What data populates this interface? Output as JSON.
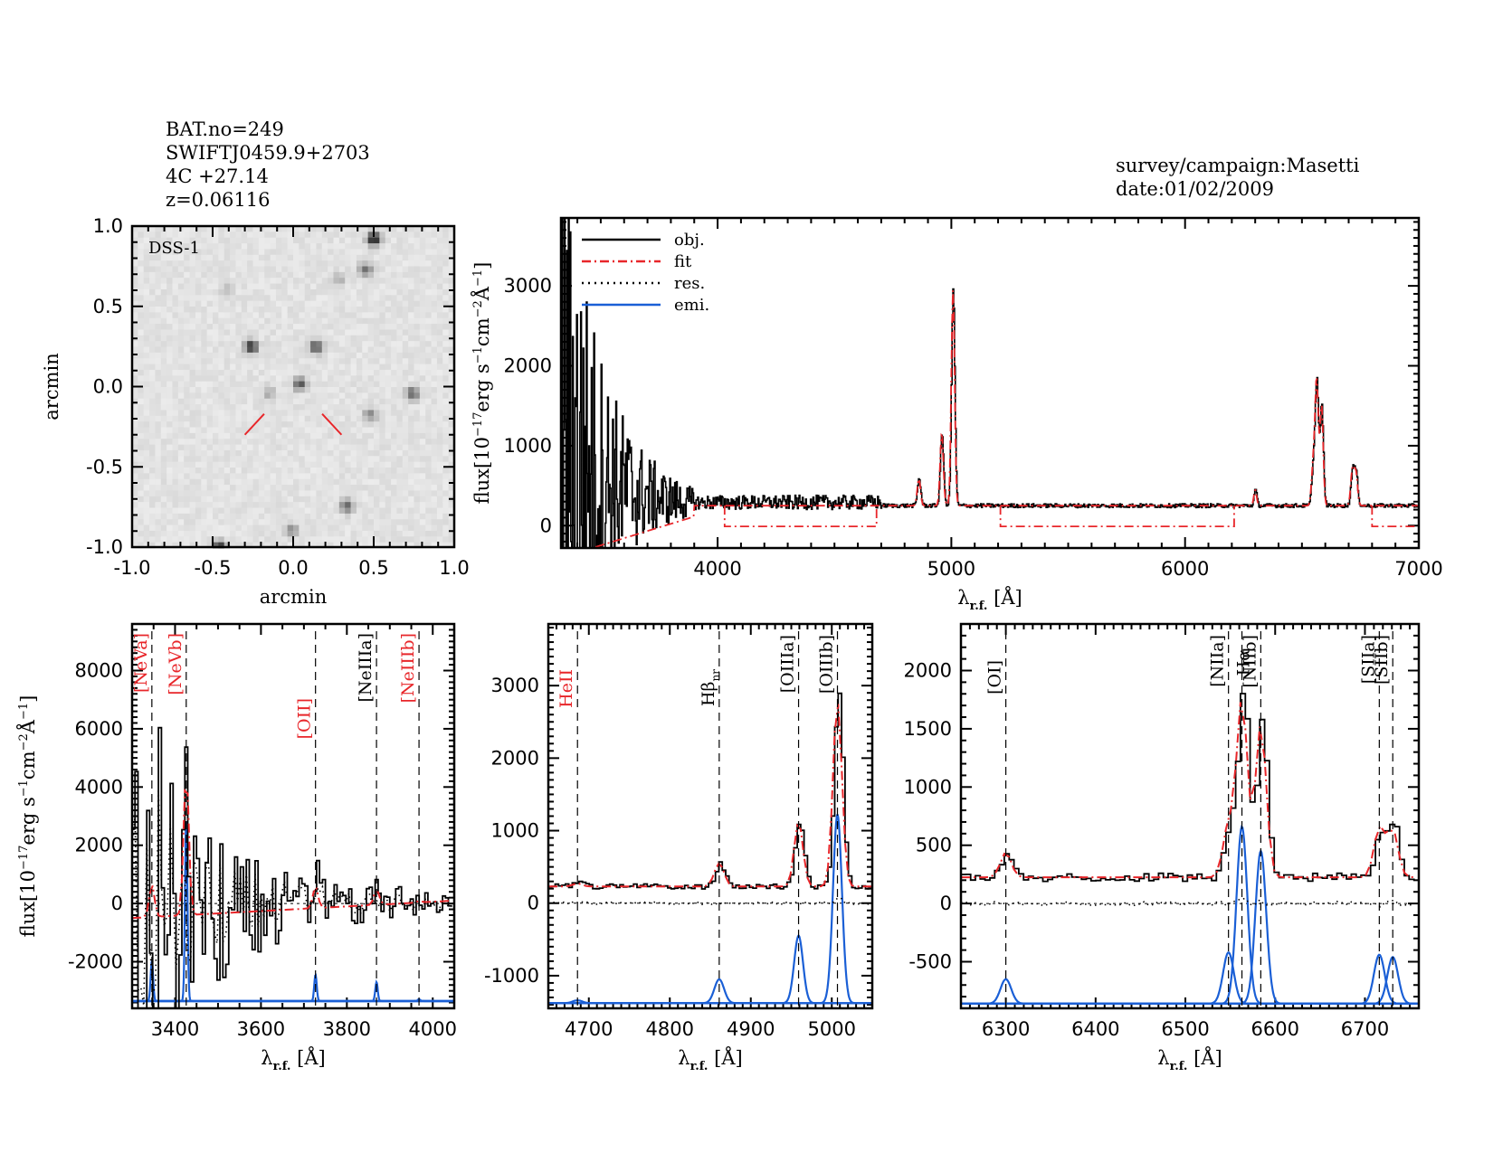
{
  "header": {
    "source_lines": [
      "BAT.no=249",
      "SWIFTJ0459.9+2703",
      "4C +27.14",
      "z=0.06116"
    ],
    "survey_line": "survey/campaign:Masetti",
    "date_line": "date:01/02/2009"
  },
  "colors": {
    "object": "#000000",
    "fit": "#e8262a",
    "residual": "#000000",
    "emission": "#1a5fd6",
    "marker": "#e8262a",
    "label_red": "#e8262a",
    "label_black": "#000000"
  },
  "chart_data": [
    {
      "id": "image",
      "type": "heatmap",
      "title": "DSS-1",
      "xlabel": "arcmin",
      "ylabel": "arcmin",
      "xlim": [
        -1.0,
        1.0
      ],
      "ylim": [
        -1.0,
        1.0
      ],
      "xticks": [
        "-1.0",
        "-0.5",
        "0.0",
        "0.5",
        "1.0"
      ],
      "yticks": [
        "-1.0",
        "-0.5",
        "0.0",
        "0.5",
        "1.0"
      ],
      "sources": [
        {
          "x": 0.5,
          "y": 0.92,
          "mag": 1.0
        },
        {
          "x": 0.45,
          "y": 0.73,
          "mag": 0.55
        },
        {
          "x": 0.29,
          "y": 0.67,
          "mag": 0.25
        },
        {
          "x": -0.41,
          "y": 0.6,
          "mag": 0.2
        },
        {
          "x": -0.26,
          "y": 0.25,
          "mag": 0.9
        },
        {
          "x": 0.14,
          "y": 0.25,
          "mag": 0.75
        },
        {
          "x": 0.04,
          "y": 0.02,
          "mag": 0.7
        },
        {
          "x": -0.15,
          "y": -0.04,
          "mag": 0.3
        },
        {
          "x": 0.74,
          "y": -0.04,
          "mag": 0.65
        },
        {
          "x": 0.48,
          "y": -0.17,
          "mag": 0.45
        },
        {
          "x": 0.33,
          "y": -0.74,
          "mag": 0.6
        },
        {
          "x": -0.01,
          "y": -0.89,
          "mag": 0.4
        },
        {
          "x": -0.46,
          "y": -1.0,
          "mag": 1.0
        }
      ],
      "target_marker": {
        "x": 0.0,
        "y": 0.0
      }
    },
    {
      "id": "full",
      "type": "line",
      "xlabel": "λ r.f. [Å]",
      "ylabel": "flux[10^-17 erg s^-1 cm^-2 Å^-1]",
      "xlim": [
        3330,
        7000
      ],
      "ylim": [
        -280,
        3850
      ],
      "xticks": [
        "4000",
        "5000",
        "6000",
        "7000"
      ],
      "yticks": [
        "0",
        "1000",
        "2000",
        "3000"
      ],
      "legend": {
        "placement": "top-left",
        "entries": [
          "obj.",
          "fit",
          "res.",
          "emi."
        ]
      },
      "continuum": 250,
      "noisy_blue_end": 3900,
      "emission_lines": [
        {
          "name": "Hβ",
          "x": 4861,
          "peak": 340,
          "sigma": 7
        },
        {
          "name": "[OIIIa]",
          "x": 4959,
          "peak": 900,
          "sigma": 7
        },
        {
          "name": "[OIIIb]",
          "x": 5007,
          "peak": 2700,
          "sigma": 7
        },
        {
          "name": "[OI]",
          "x": 6300,
          "peak": 200,
          "sigma": 6
        },
        {
          "name": "[NIIa]",
          "x": 6548,
          "peak": 500,
          "sigma": 7
        },
        {
          "name": "Hα",
          "x": 6563,
          "peak": 1550,
          "sigma": 7
        },
        {
          "name": "[NIIb]",
          "x": 6584,
          "peak": 1250,
          "sigma": 7
        },
        {
          "name": "[SIIa]",
          "x": 6716,
          "peak": 450,
          "sigma": 7
        },
        {
          "name": "[SIIb]",
          "x": 6731,
          "peak": 400,
          "sigma": 7
        }
      ],
      "fit_steps": [
        {
          "x0": 4030,
          "x1": 4680,
          "y": -10
        },
        {
          "x0": 5210,
          "x1": 6210,
          "y": -10
        },
        {
          "x0": 6800,
          "x1": 7000,
          "y": -10
        }
      ]
    },
    {
      "id": "zoom1",
      "type": "line",
      "xlabel": "λ r.f. [Å]",
      "ylabel": "flux[10^-17 erg s^-1 cm^-2 Å^-1]",
      "xlim": [
        3300,
        4050
      ],
      "ylim": [
        -3600,
        9600
      ],
      "xticks": [
        "3400",
        "3600",
        "3800",
        "4000"
      ],
      "yticks": [
        "-2000",
        "0",
        "2000",
        "4000",
        "6000",
        "8000"
      ],
      "emi_baseline": -3350,
      "lines": [
        {
          "label": "[NeVa]",
          "x": 3346,
          "color": "red",
          "emi_peak": 1400
        },
        {
          "label": "[NeVb]",
          "x": 3426,
          "color": "red",
          "emi_peak": 6200
        },
        {
          "label": "[OII]",
          "x": 3727,
          "color": "red",
          "emi_peak": 900
        },
        {
          "label": "[NeIIIa]",
          "x": 3869,
          "color": "black",
          "emi_peak": 650
        },
        {
          "label": "[NeIIIb]",
          "x": 3968,
          "color": "red",
          "emi_peak": 60
        }
      ]
    },
    {
      "id": "zoom2",
      "type": "line",
      "xlabel": "λ r.f. [Å]",
      "ylabel": "",
      "xlim": [
        4650,
        5050
      ],
      "ylim": [
        -1450,
        3850
      ],
      "xticks": [
        "4700",
        "4800",
        "4900",
        "5000"
      ],
      "yticks": [
        "-1000",
        "0",
        "1000",
        "2000",
        "3000"
      ],
      "continuum": 230,
      "emi_baseline": -1380,
      "lines": [
        {
          "label": "HeII",
          "x": 4686,
          "color": "red",
          "peak": 40,
          "emi_peak": 40,
          "sigma": 6
        },
        {
          "label": "Hβnr",
          "x": 4861,
          "color": "black",
          "peak": 320,
          "emi_peak": 330,
          "sigma": 6
        },
        {
          "label": "[OIIIa]",
          "x": 4959,
          "color": "black",
          "peak": 880,
          "emi_peak": 930,
          "sigma": 5.5
        },
        {
          "label": "[OIIIb]",
          "x": 5007,
          "color": "black",
          "peak": 2550,
          "emi_peak": 2600,
          "sigma": 5.5
        }
      ]
    },
    {
      "id": "zoom3",
      "type": "line",
      "xlabel": "λ r.f. [Å]",
      "ylabel": "",
      "xlim": [
        6250,
        6760
      ],
      "ylim": [
        -900,
        2400
      ],
      "xticks": [
        "6300",
        "6400",
        "6500",
        "6600",
        "6700"
      ],
      "yticks": [
        "-500",
        "0",
        "500",
        "1000",
        "1500",
        "2000"
      ],
      "continuum": 225,
      "emi_baseline": -860,
      "lines": [
        {
          "label": "[OI]",
          "x": 6300,
          "color": "black",
          "peak": 210,
          "emi_peak": 210,
          "sigma": 6
        },
        {
          "label": "[NIIa]",
          "x": 6548,
          "color": "black",
          "peak": 440,
          "emi_peak": 440,
          "sigma": 6
        },
        {
          "label": "Hα",
          "x": 6563,
          "color": "black",
          "peak": 1520,
          "emi_peak": 1520,
          "sigma": 6
        },
        {
          "label": "[NIIb]",
          "x": 6584,
          "color": "black",
          "peak": 1310,
          "emi_peak": 1310,
          "sigma": 6
        },
        {
          "label": "[SIIa]",
          "x": 6716,
          "color": "black",
          "peak": 420,
          "emi_peak": 420,
          "sigma": 6
        },
        {
          "label": "[SIIb]",
          "x": 6731,
          "color": "black",
          "peak": 400,
          "emi_peak": 400,
          "sigma": 6
        }
      ]
    }
  ]
}
